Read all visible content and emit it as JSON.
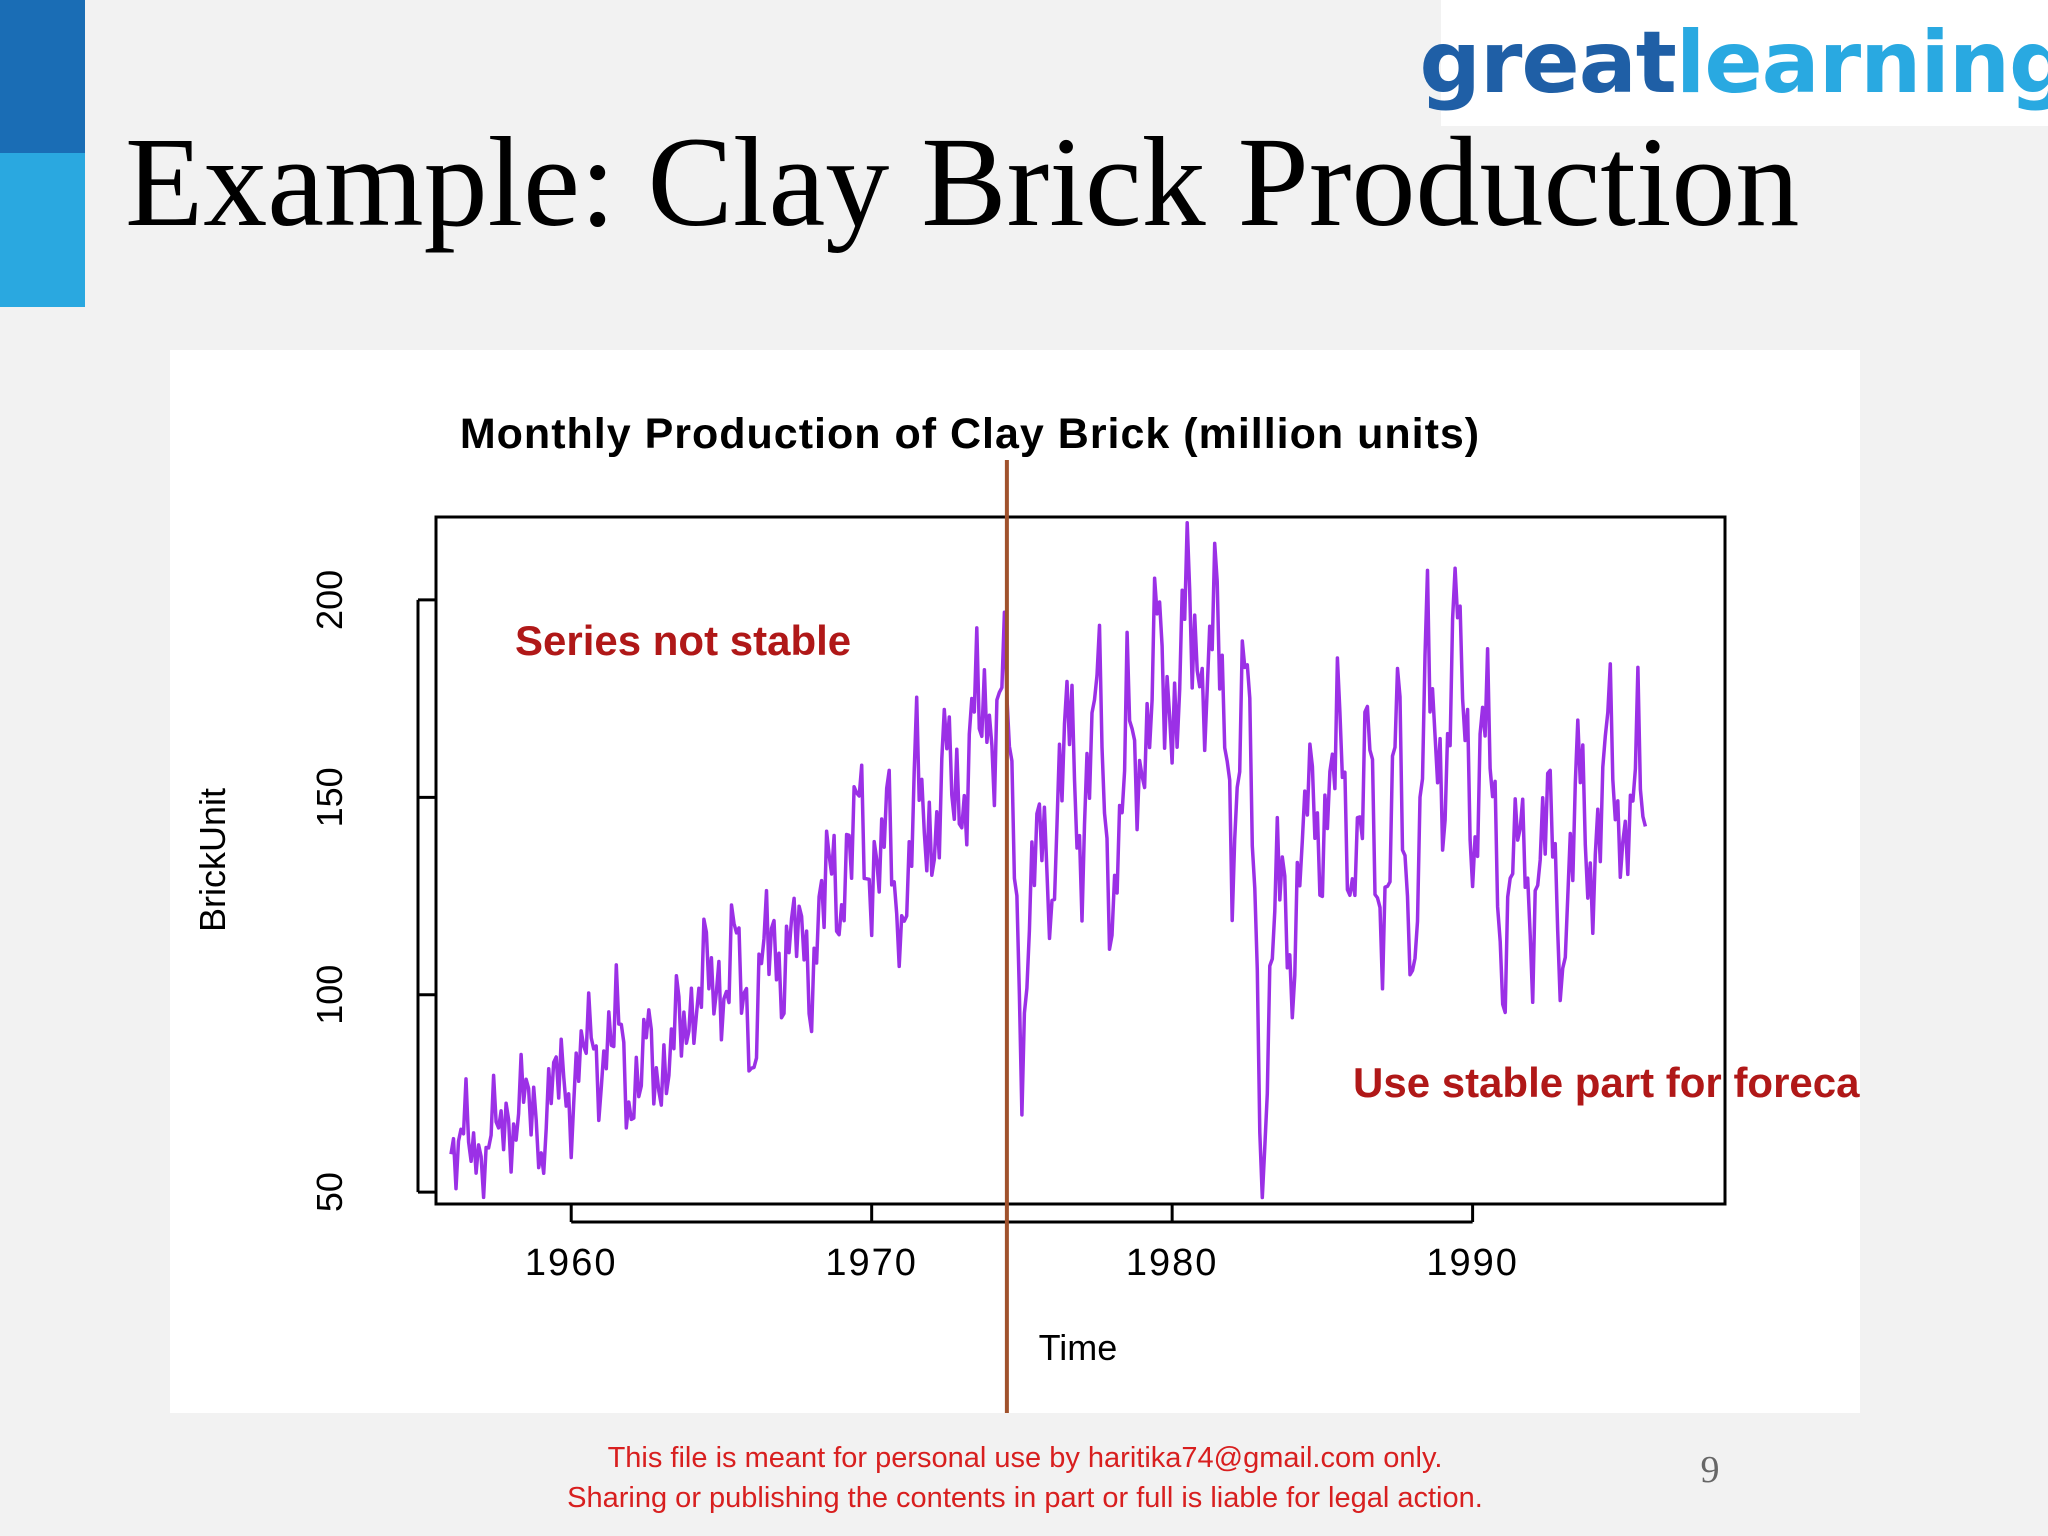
{
  "slide": {
    "title": "Example: Clay Brick Production",
    "logo": {
      "part1": "great",
      "part2": "learning"
    },
    "footer_line1": "This file is meant for personal use by haritika74@gmail.com only.",
    "footer_line2": "Sharing or publishing the contents in part or full is liable for legal action.",
    "page_number": "9"
  },
  "colors": {
    "accent_dark": "#1a6db5",
    "accent_light": "#2aa8e0",
    "series": "#9b30e6",
    "divider": "#a0522d",
    "annotation": "#b01818"
  },
  "annotations": {
    "left": "Series not stable",
    "right": "Use stable part for forecast"
  },
  "chart_data": {
    "type": "line",
    "title": "Monthly Production of Clay Brick (million units)",
    "xlabel": "Time",
    "ylabel": "BrickUnit",
    "xlim": [
      1955.5,
      1998.4
    ],
    "ylim": [
      47,
      221
    ],
    "xticks": [
      1960,
      1970,
      1980,
      1990
    ],
    "yticks": [
      50,
      100,
      150,
      200
    ],
    "divider_x": 1974.5,
    "series": [
      {
        "frequency": 12,
        "start": 1956.0,
        "points": [
          [
            1956.0,
            56
          ],
          [
            1956.5,
            69
          ],
          [
            1957.0,
            54
          ],
          [
            1957.5,
            72
          ],
          [
            1958.0,
            62
          ],
          [
            1958.5,
            80
          ],
          [
            1959.0,
            57
          ],
          [
            1959.5,
            86
          ],
          [
            1960.0,
            68
          ],
          [
            1960.5,
            95
          ],
          [
            1961.0,
            76
          ],
          [
            1961.5,
            100
          ],
          [
            1962.0,
            66
          ],
          [
            1962.5,
            93
          ],
          [
            1963.0,
            73
          ],
          [
            1963.5,
            96
          ],
          [
            1964.0,
            90
          ],
          [
            1964.5,
            112
          ],
          [
            1965.0,
            94
          ],
          [
            1965.5,
            120
          ],
          [
            1966.0,
            78
          ],
          [
            1966.5,
            122
          ],
          [
            1967.0,
            100
          ],
          [
            1967.5,
            124
          ],
          [
            1968.0,
            98
          ],
          [
            1968.5,
            138
          ],
          [
            1969.0,
            118
          ],
          [
            1969.5,
            155
          ],
          [
            1970.0,
            122
          ],
          [
            1970.5,
            150
          ],
          [
            1971.0,
            108
          ],
          [
            1971.5,
            162
          ],
          [
            1972.0,
            130
          ],
          [
            1972.5,
            168
          ],
          [
            1973.0,
            140
          ],
          [
            1973.5,
            182
          ],
          [
            1974.0,
            160
          ],
          [
            1974.5,
            188
          ],
          [
            1975.0,
            80
          ],
          [
            1975.5,
            150
          ],
          [
            1976.0,
            120
          ],
          [
            1976.5,
            180
          ],
          [
            1977.0,
            128
          ],
          [
            1977.5,
            190
          ],
          [
            1978.0,
            110
          ],
          [
            1978.5,
            176
          ],
          [
            1979.0,
            148
          ],
          [
            1979.5,
            200
          ],
          [
            1980.0,
            160
          ],
          [
            1980.5,
            208
          ],
          [
            1981.0,
            170
          ],
          [
            1981.5,
            205
          ],
          [
            1982.0,
            130
          ],
          [
            1982.5,
            195
          ],
          [
            1983.0,
            48
          ],
          [
            1983.5,
            142
          ],
          [
            1984.0,
            100
          ],
          [
            1984.5,
            160
          ],
          [
            1985.0,
            130
          ],
          [
            1985.5,
            176
          ],
          [
            1986.0,
            120
          ],
          [
            1986.5,
            172
          ],
          [
            1987.0,
            105
          ],
          [
            1987.5,
            178
          ],
          [
            1988.0,
            95
          ],
          [
            1988.5,
            195
          ],
          [
            1989.0,
            140
          ],
          [
            1989.5,
            208
          ],
          [
            1990.0,
            130
          ],
          [
            1990.5,
            182
          ],
          [
            1991.0,
            98
          ],
          [
            1991.5,
            152
          ],
          [
            1992.0,
            110
          ],
          [
            1992.5,
            158
          ],
          [
            1993.0,
            100
          ],
          [
            1993.5,
            165
          ],
          [
            1994.0,
            120
          ],
          [
            1994.5,
            175
          ],
          [
            1995.0,
            130
          ],
          [
            1995.5,
            166
          ],
          [
            1995.75,
            141
          ]
        ]
      }
    ]
  }
}
